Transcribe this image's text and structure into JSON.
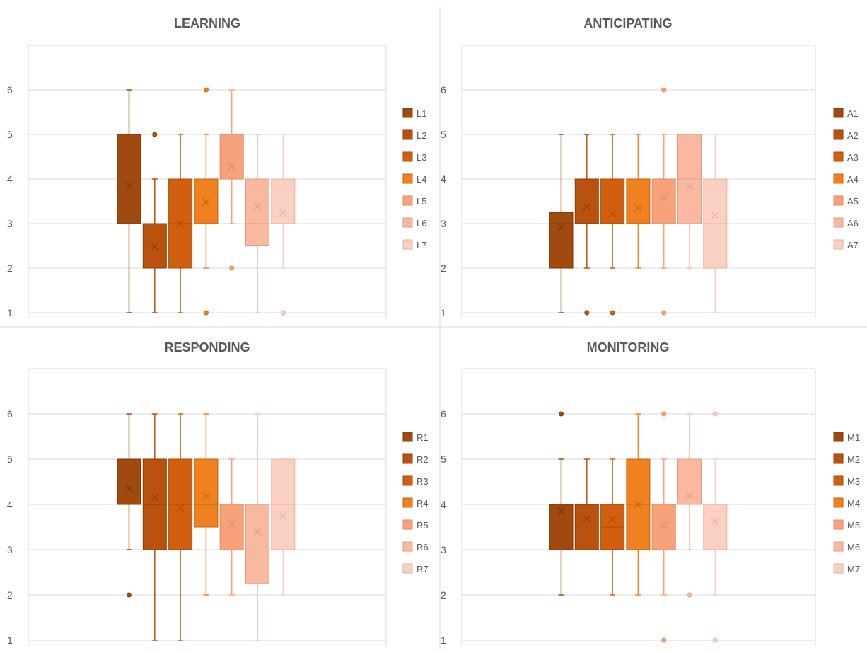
{
  "colors": [
    "#A04A10",
    "#B9520F",
    "#D0600F",
    "#F08020",
    "#F7A27A",
    "#F8B9A0",
    "#FAD1C0"
  ],
  "colors_dark": [
    "#7A3508",
    "#8E3C08",
    "#A84A0A",
    "#C0620E",
    "#E08A62",
    "#E09E86",
    "#E6B0A0"
  ],
  "chart_data": [
    {
      "type": "box",
      "title": "LEARNING",
      "ylim": [
        1,
        7
      ],
      "yticks": [
        1,
        2,
        3,
        4,
        5,
        6
      ],
      "grid": true,
      "legend_position": "right",
      "series": [
        {
          "name": "L1",
          "min": 1,
          "q1": 3,
          "median": 5,
          "q3": 5,
          "max": 6,
          "mean": 3.85,
          "outliers": []
        },
        {
          "name": "L2",
          "min": 1,
          "q1": 2,
          "median": 3,
          "q3": 3,
          "max": 4,
          "mean": 2.48,
          "outliers": [
            5
          ]
        },
        {
          "name": "L3",
          "min": 1,
          "q1": 2,
          "median": 3,
          "q3": 4,
          "max": 5,
          "mean": 3.0,
          "outliers": []
        },
        {
          "name": "L4",
          "min": 2,
          "q1": 3,
          "median": 4,
          "q3": 4,
          "max": 5,
          "mean": 3.48,
          "outliers": [
            1,
            6
          ]
        },
        {
          "name": "L5",
          "min": 3,
          "q1": 4,
          "median": 5,
          "q3": 5,
          "max": 6,
          "mean": 4.28,
          "outliers": [
            2
          ]
        },
        {
          "name": "L6",
          "min": 1,
          "q1": 2.5,
          "median": 3,
          "q3": 4,
          "max": 5,
          "mean": 3.38,
          "outliers": []
        },
        {
          "name": "L7",
          "min": 2,
          "q1": 3,
          "median": 3,
          "q3": 4,
          "max": 5,
          "mean": 3.25,
          "outliers": [
            1
          ]
        }
      ]
    },
    {
      "type": "box",
      "title": "ANTICIPATING",
      "ylim": [
        1,
        7
      ],
      "yticks": [
        1,
        2,
        3,
        4,
        5,
        6
      ],
      "grid": true,
      "legend_position": "right",
      "series": [
        {
          "name": "A1",
          "min": 1,
          "q1": 2,
          "median": 3,
          "q3": 3.25,
          "max": 5,
          "mean": 2.92,
          "outliers": []
        },
        {
          "name": "A2",
          "min": 2,
          "q1": 3,
          "median": 3,
          "q3": 4,
          "max": 5,
          "mean": 3.37,
          "outliers": [
            1
          ]
        },
        {
          "name": "A3",
          "min": 2,
          "q1": 3,
          "median": 3,
          "q3": 4,
          "max": 5,
          "mean": 3.22,
          "outliers": [
            1
          ]
        },
        {
          "name": "A4",
          "min": 2,
          "q1": 3,
          "median": 3,
          "q3": 4,
          "max": 5,
          "mean": 3.35,
          "outliers": []
        },
        {
          "name": "A5",
          "min": 2,
          "q1": 3,
          "median": 4,
          "q3": 4,
          "max": 5,
          "mean": 3.6,
          "outliers": [
            1,
            6
          ]
        },
        {
          "name": "A6",
          "min": 2,
          "q1": 3,
          "median": 4,
          "q3": 5,
          "max": 5,
          "mean": 3.83,
          "outliers": []
        },
        {
          "name": "A7",
          "min": 1,
          "q1": 2,
          "median": 3,
          "q3": 4,
          "max": 5,
          "mean": 3.18,
          "outliers": []
        }
      ]
    },
    {
      "type": "box",
      "title": "RESPONDING",
      "ylim": [
        1,
        7
      ],
      "yticks": [
        1,
        2,
        3,
        4,
        5,
        6
      ],
      "grid": true,
      "legend_position": "right",
      "series": [
        {
          "name": "R1",
          "min": 3,
          "q1": 4,
          "median": 4,
          "q3": 5,
          "max": 6,
          "mean": 4.35,
          "outliers": [
            2
          ]
        },
        {
          "name": "R2",
          "min": 1,
          "q1": 3,
          "median": 4,
          "q3": 5,
          "max": 6,
          "mean": 4.15,
          "outliers": []
        },
        {
          "name": "R3",
          "min": 1,
          "q1": 3,
          "median": 4,
          "q3": 5,
          "max": 6,
          "mean": 3.92,
          "outliers": []
        },
        {
          "name": "R4",
          "min": 2,
          "q1": 3.5,
          "median": 4,
          "q3": 5,
          "max": 6,
          "mean": 4.18,
          "outliers": []
        },
        {
          "name": "R5",
          "min": 2,
          "q1": 3,
          "median": 4,
          "q3": 4,
          "max": 5,
          "mean": 3.57,
          "outliers": []
        },
        {
          "name": "R6",
          "min": 1,
          "q1": 2.25,
          "median": 4,
          "q3": 4,
          "max": 6,
          "mean": 3.4,
          "outliers": []
        },
        {
          "name": "R7",
          "min": 2,
          "q1": 3,
          "median": 4,
          "q3": 5,
          "max": 5,
          "mean": 3.75,
          "outliers": []
        }
      ]
    },
    {
      "type": "box",
      "title": "MONITORING",
      "ylim": [
        1,
        7
      ],
      "yticks": [
        1,
        2,
        3,
        4,
        5,
        6
      ],
      "grid": true,
      "legend_position": "right",
      "series": [
        {
          "name": "M1",
          "min": 2,
          "q1": 3,
          "median": 4,
          "q3": 4,
          "max": 5,
          "mean": 3.85,
          "outliers": [
            6
          ]
        },
        {
          "name": "M2",
          "min": 3,
          "q1": 3,
          "median": 4,
          "q3": 4,
          "max": 5,
          "mean": 3.68,
          "outliers": []
        },
        {
          "name": "M3",
          "min": 2,
          "q1": 3,
          "median": 3.5,
          "q3": 4,
          "max": 5,
          "mean": 3.67,
          "outliers": []
        },
        {
          "name": "M4",
          "min": 2,
          "q1": 3,
          "median": 4,
          "q3": 5,
          "max": 6,
          "mean": 4.0,
          "outliers": []
        },
        {
          "name": "M5",
          "min": 2,
          "q1": 3,
          "median": 4,
          "q3": 4,
          "max": 5,
          "mean": 3.55,
          "outliers": [
            1,
            6
          ]
        },
        {
          "name": "M6",
          "min": 3,
          "q1": 4,
          "median": 5,
          "q3": 5,
          "max": 6,
          "mean": 4.2,
          "outliers": [
            2
          ]
        },
        {
          "name": "M7",
          "min": 2,
          "q1": 3,
          "median": 4,
          "q3": 4,
          "max": 5,
          "mean": 3.63,
          "outliers": [
            1,
            6
          ]
        }
      ]
    }
  ]
}
